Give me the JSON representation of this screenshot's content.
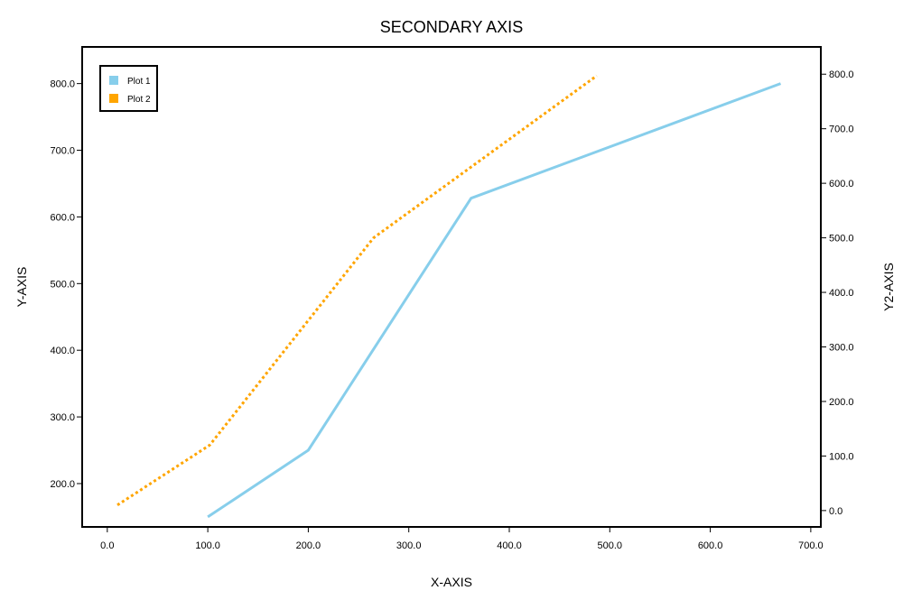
{
  "chart_data": {
    "type": "line",
    "title": "SECONDARY AXIS",
    "xlabel": "X-AXIS",
    "ylabel": "Y-AXIS",
    "y2label": "Y2-AXIS",
    "xlim": [
      -25,
      710
    ],
    "ylim": [
      135,
      855
    ],
    "y2lim": [
      -30,
      850
    ],
    "xticks": [
      0,
      100,
      200,
      300,
      400,
      500,
      600,
      700
    ],
    "yticks": [
      200,
      300,
      400,
      500,
      600,
      700,
      800
    ],
    "y2ticks": [
      0,
      100,
      200,
      300,
      400,
      500,
      600,
      700,
      800
    ],
    "tick_format": "0.0",
    "legend_position": "top-left",
    "series": [
      {
        "name": "Plot 1",
        "axis": "y",
        "color": "#87CEEB",
        "style": "solid",
        "x": [
          100,
          200,
          362,
          670
        ],
        "y": [
          150,
          250,
          628,
          800
        ]
      },
      {
        "name": "Plot 2",
        "axis": "y2",
        "color": "#FFA500",
        "style": "dotted",
        "x": [
          10,
          102,
          265,
          487
        ],
        "y": [
          10,
          120,
          500,
          797
        ]
      }
    ]
  }
}
